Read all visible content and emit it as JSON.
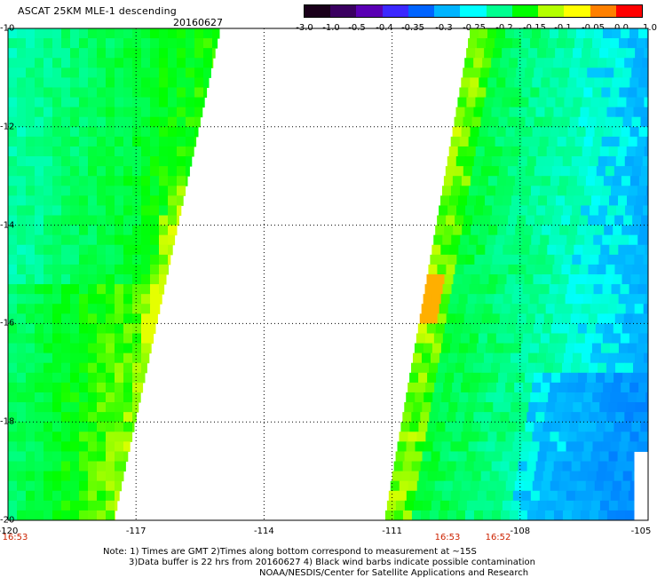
{
  "header": {
    "title": "ASCAT 25KM MLE-1 descending",
    "date": "20160627"
  },
  "colorbar": {
    "labels": [
      "-3.0",
      "-1.0",
      "-0.5",
      "-0.4",
      "-0.35",
      "-0.3",
      "-0.25",
      "-0.2",
      "-0.15",
      "-0.1",
      "-0.05",
      "0.0",
      "1.0"
    ],
    "colors": [
      "#1a001a",
      "#3a0060",
      "#5a00b4",
      "#3c28ff",
      "#0064ff",
      "#00b4ff",
      "#00ffff",
      "#00ff90",
      "#00ff00",
      "#b4ff00",
      "#ffff00",
      "#ff8000",
      "#ff0000"
    ]
  },
  "axes": {
    "lat_labels": [
      "-10",
      "-12",
      "-14",
      "-16",
      "-18",
      "-20"
    ],
    "lon_labels": [
      "-120",
      "-117",
      "-114",
      "-111",
      "-108",
      "-105"
    ],
    "lat_range": [
      -20,
      -10
    ],
    "lon_range": [
      -120,
      -105
    ]
  },
  "times": {
    "left": "16:53",
    "mid": "16:53",
    "right": "16:52"
  },
  "notes": {
    "line1": "Note: 1) Times are GMT 2)Times along bottom correspond to measurement at ~15S",
    "line2": "3)Data buffer is 22 hrs from 20160627 4) Black wind barbs indicate possible contamination",
    "line3": "NOAA/NESDIS/Center for Satellite Applications and Research"
  }
}
